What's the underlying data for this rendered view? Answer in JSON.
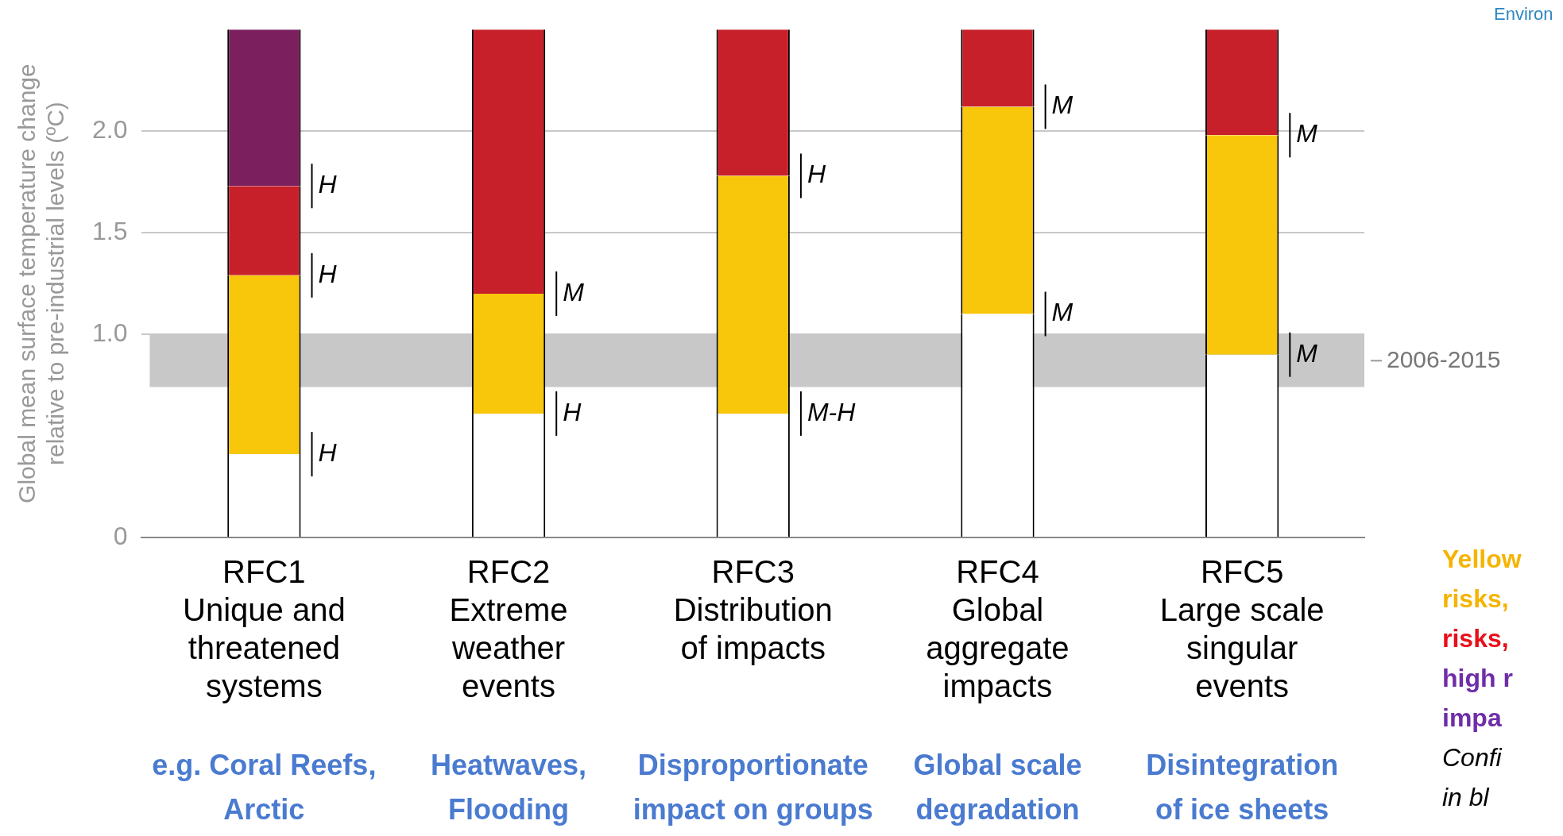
{
  "chart_data": {
    "type": "bar",
    "stacked": true,
    "categories": [
      "RFC1\nUnique and\nthreatened\nsystems",
      "RFC2\nExtreme\nweather\nevents",
      "RFC3\nDistribution\nof impacts",
      "RFC4\nGlobal\naggregate\nimpacts",
      "RFC5\nLarge scale\nsingular\nevents"
    ],
    "series": [
      {
        "color": "#ffffff",
        "values": [
          0.41,
          0.61,
          0.61,
          1.1,
          0.9
        ]
      },
      {
        "color": "#f8c60a",
        "values": [
          0.88,
          0.59,
          1.17,
          1.02,
          1.08
        ]
      },
      {
        "color": "#c8202a",
        "values": [
          0.44,
          1.3,
          0.72,
          0.38,
          0.52
        ]
      },
      {
        "color": "#7b1f5f",
        "values": [
          0.77,
          0,
          0,
          0,
          0
        ]
      }
    ],
    "ylabel": "Global mean surface temperature change\nrelative to pre-industrial levels (ºC)",
    "ylim": [
      0,
      2.5
    ],
    "yticks": [
      0,
      {
        "value": 1,
        "label": "1.0"
      },
      1.5,
      {
        "value": 2,
        "label": "2.0"
      }
    ],
    "grid": "y",
    "legend": false,
    "bands": [
      {
        "axis": "y",
        "from": 0.74,
        "to": 1.0,
        "label": "2006-2015",
        "color": "#c8c8c8"
      }
    ],
    "annotations": [
      {
        "text": "H",
        "x": "RFC1\nUnique and\nthreatened\nsystems",
        "y": 1.73
      },
      {
        "text": "H",
        "x": "RFC1\nUnique and\nthreatened\nsystems",
        "y": 1.29
      },
      {
        "text": "H",
        "x": "RFC1\nUnique and\nthreatened\nsystems",
        "y": 0.41
      },
      {
        "text": "M",
        "x": "RFC2\nExtreme\nweather\nevents",
        "y": 1.2
      },
      {
        "text": "H",
        "x": "RFC2\nExtreme\nweather\nevents",
        "y": 0.61
      },
      {
        "text": "H",
        "x": "RFC3\nDistribution\nof impacts",
        "y": 1.78
      },
      {
        "text": "M-H",
        "x": "RFC3\nDistribution\nof impacts",
        "y": 0.61
      },
      {
        "text": "M",
        "x": "RFC4\nGlobal\naggregate\nimpacts",
        "y": 2.12
      },
      {
        "text": "M",
        "x": "RFC4\nGlobal\naggregate\nimpacts",
        "y": 1.1
      },
      {
        "text": "M",
        "x": "RFC5\nLarge scale\nsingular\nevents",
        "y": 1.98
      },
      {
        "text": "M",
        "x": "RFC5\nLarge scale\nsingular\nevents",
        "y": 0.9
      },
      "e.g. Coral Reefs,\nArctic",
      "Heatwaves,\nFlooding",
      "Disproportionate\nimpact on groups",
      "Global scale\ndegradation",
      "Disintegration\nof ice sheets",
      "Environ",
      "Yellow",
      "risks,",
      "risks,",
      "high r",
      "impa",
      "Confi",
      "in bl"
    ]
  }
}
